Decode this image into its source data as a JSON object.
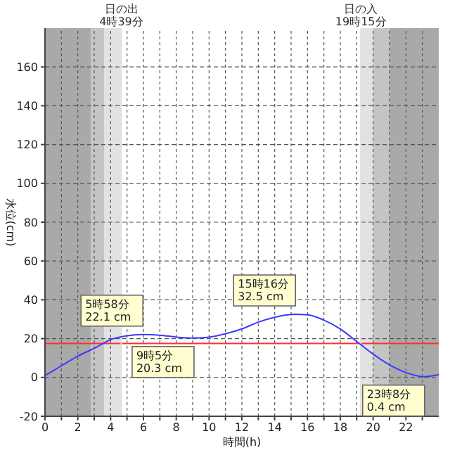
{
  "chart_data": {
    "type": "line",
    "xlabel": "時間(h)",
    "ylabel": "水位(cm)",
    "x": [
      0,
      1,
      2,
      3,
      4,
      5,
      5.967,
      7,
      8,
      9.083,
      10,
      11,
      12,
      13,
      14,
      15.267,
      16,
      17,
      18,
      19,
      20,
      21,
      22,
      23.133,
      24
    ],
    "series": [
      {
        "color": "#3a3aff",
        "values": [
          1,
          6,
          11,
          15,
          19.5,
          21.5,
          22.1,
          21.8,
          20.8,
          20.3,
          20.8,
          22.5,
          25,
          28.5,
          31,
          32.5,
          32.3,
          29.5,
          25,
          18.5,
          12,
          6.5,
          2.5,
          0.4,
          1.5
        ]
      }
    ],
    "xlim": [
      0,
      24
    ],
    "ylim": [
      -20,
      180
    ],
    "xticks": [
      0,
      {
        "value": 1,
        "label": null
      },
      2,
      {
        "value": 3,
        "label": null
      },
      4,
      {
        "value": 5,
        "label": null
      },
      6,
      {
        "value": 7,
        "label": null
      },
      8,
      {
        "value": 9,
        "label": null
      },
      10,
      {
        "value": 11,
        "label": null
      },
      12,
      {
        "value": 13,
        "label": null
      },
      14,
      {
        "value": 15,
        "label": null
      },
      16,
      {
        "value": 17,
        "label": null
      },
      18,
      {
        "value": 19,
        "label": null
      },
      20,
      {
        "value": 21,
        "label": null
      },
      22,
      {
        "value": 23,
        "label": null
      }
    ],
    "yticks": [
      -20,
      0,
      20,
      40,
      60,
      80,
      100,
      120,
      140,
      160
    ],
    "grid": true,
    "marker": "none",
    "line_style": "solid",
    "bands": [
      {
        "axis": "x",
        "from": 0,
        "to": 2.8,
        "color": "#a9a9a9"
      },
      {
        "axis": "x",
        "from": 2.8,
        "to": 3.6,
        "color": "#c4c4c4"
      },
      {
        "axis": "x",
        "from": 3.6,
        "to": 4.65,
        "color": "#e2e2e2"
      },
      {
        "axis": "x",
        "from": 19.25,
        "to": 20,
        "color": "#e2e2e2"
      },
      {
        "axis": "x",
        "from": 20,
        "to": 21,
        "color": "#c4c4c4"
      },
      {
        "axis": "x",
        "from": 21,
        "to": 24,
        "color": "#a9a9a9"
      }
    ],
    "ref_lines": [
      {
        "axis": "y",
        "value": 17.5,
        "color": "#ff3030"
      },
      {
        "axis": "x",
        "value": 4.65,
        "label": "日の出\n4時39分",
        "color": "#e2e2e2"
      },
      {
        "axis": "x",
        "value": 19.25,
        "label": "日の入\n19時15分",
        "color": "#e2e2e2"
      }
    ],
    "annotations": [
      {
        "text": "5時58分\n22.1 cm",
        "x": 5.967,
        "y": 22.1
      },
      {
        "text": "9時5分\n20.3 cm",
        "x": 9.083,
        "y": 20.3
      },
      {
        "text": "15時16分\n32.5 cm",
        "x": 15.267,
        "y": 32.5
      },
      {
        "text": "23時8分\n0.4 cm",
        "x": 23.133,
        "y": 0.4
      }
    ]
  }
}
